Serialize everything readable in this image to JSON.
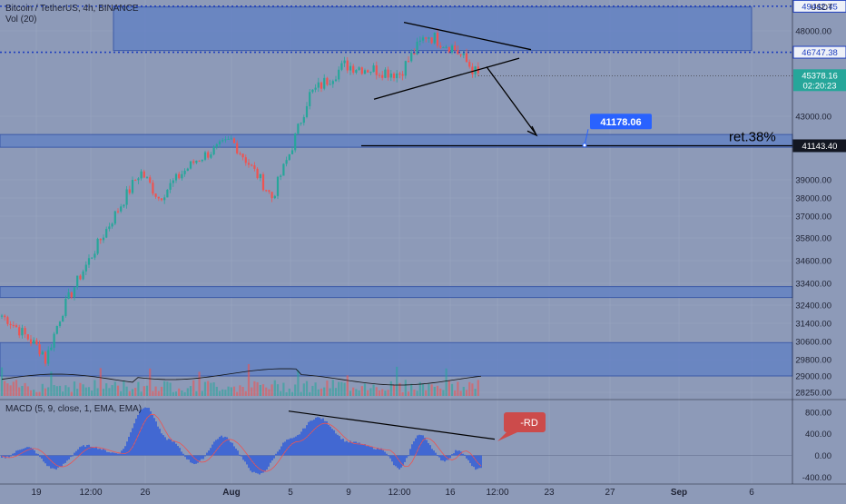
{
  "header": {
    "symbol_line": "Bitcoin / TetherUS, 4h, BINANCE",
    "volume_label": "Vol (20)",
    "currency": "USDT"
  },
  "colors": {
    "background": "#8d9ab8",
    "zone": "#5f7fc4",
    "up": "#26a69a",
    "down": "#ef5350",
    "macd_hist": "#2f5bd8",
    "blue_tag": "#2962ff",
    "red_tag": "#cc4b4b",
    "axis_tag": "#131722"
  },
  "chart_data": {
    "type": "candlestick",
    "symbol": "BTCUSDT",
    "interval": "4h",
    "exchange": "BINANCE",
    "y_axis": {
      "ticks": [
        28250,
        29000,
        29800,
        30600,
        31400,
        32400,
        33400,
        34600,
        35800,
        37000,
        38000,
        39000,
        43000,
        48000
      ],
      "tick_labels": [
        "28250.00",
        "29000.00",
        "29800.00",
        "30600.00",
        "31400.00",
        "32400.00",
        "33400.00",
        "34600.00",
        "35800.00",
        "37000.00",
        "38000.00",
        "39000.00",
        "43000.00",
        "48000.00"
      ],
      "range": [
        28000,
        50200
      ]
    },
    "x_axis": {
      "labels": [
        "19",
        "12:00",
        "26",
        "Aug",
        "5",
        "9",
        "12:00",
        "16",
        "12:00",
        "23",
        "27",
        "Sep",
        "6"
      ],
      "bold_labels": [
        "Aug",
        "Sep"
      ]
    },
    "price_levels": [
      {
        "label": "49442.45",
        "value": 49442.45,
        "style": "dotted"
      },
      {
        "label": "46747.38",
        "value": 46747.38,
        "style": "dotted"
      },
      {
        "label": "41143.40",
        "value": 41143.4,
        "style": "solid"
      }
    ],
    "last_price": {
      "label": "45378.16",
      "value": 45378.16,
      "countdown": "02:20:23"
    },
    "zones": [
      {
        "name": "resistance-zone",
        "top": 49400,
        "bottom": 46850
      },
      {
        "name": "retracement-zone",
        "top": 41850,
        "bottom": 41050
      },
      {
        "name": "support-zone",
        "top": 33250,
        "bottom": 32750
      },
      {
        "name": "lower-support-zone",
        "top": 30550,
        "bottom": 29000
      }
    ],
    "annotations": {
      "target_price": "41178.06",
      "retracement_text": "ret.38%",
      "macd_tag": "-RD"
    },
    "key_prices": [
      {
        "time": "Jul 20",
        "price": 29500
      },
      {
        "time": "Jul 22",
        "price": 32400
      },
      {
        "time": "Jul 26",
        "price": 39500
      },
      {
        "time": "Jul 27",
        "price": 38000
      },
      {
        "time": "Jul 28",
        "price": 40200
      },
      {
        "time": "Aug 1",
        "price": 41500
      },
      {
        "time": "Aug 3",
        "price": 38000
      },
      {
        "time": "Aug 5",
        "price": 40800
      },
      {
        "time": "Aug 7",
        "price": 44200
      },
      {
        "time": "Aug 10",
        "price": 46000
      },
      {
        "time": "Aug 12",
        "price": 45500
      },
      {
        "time": "Aug 14",
        "price": 47800
      },
      {
        "time": "Aug 16",
        "price": 47000
      },
      {
        "time": "Aug 17",
        "price": 45378.16
      }
    ],
    "macd": {
      "label": "MACD (5, 9, close, 1, EMA, EMA)",
      "ticks": [
        800,
        400,
        0,
        -400
      ],
      "tick_labels": [
        "800.00",
        "400.00",
        "0.00",
        "-400.00"
      ],
      "range": [
        -530,
        1000
      ]
    }
  }
}
